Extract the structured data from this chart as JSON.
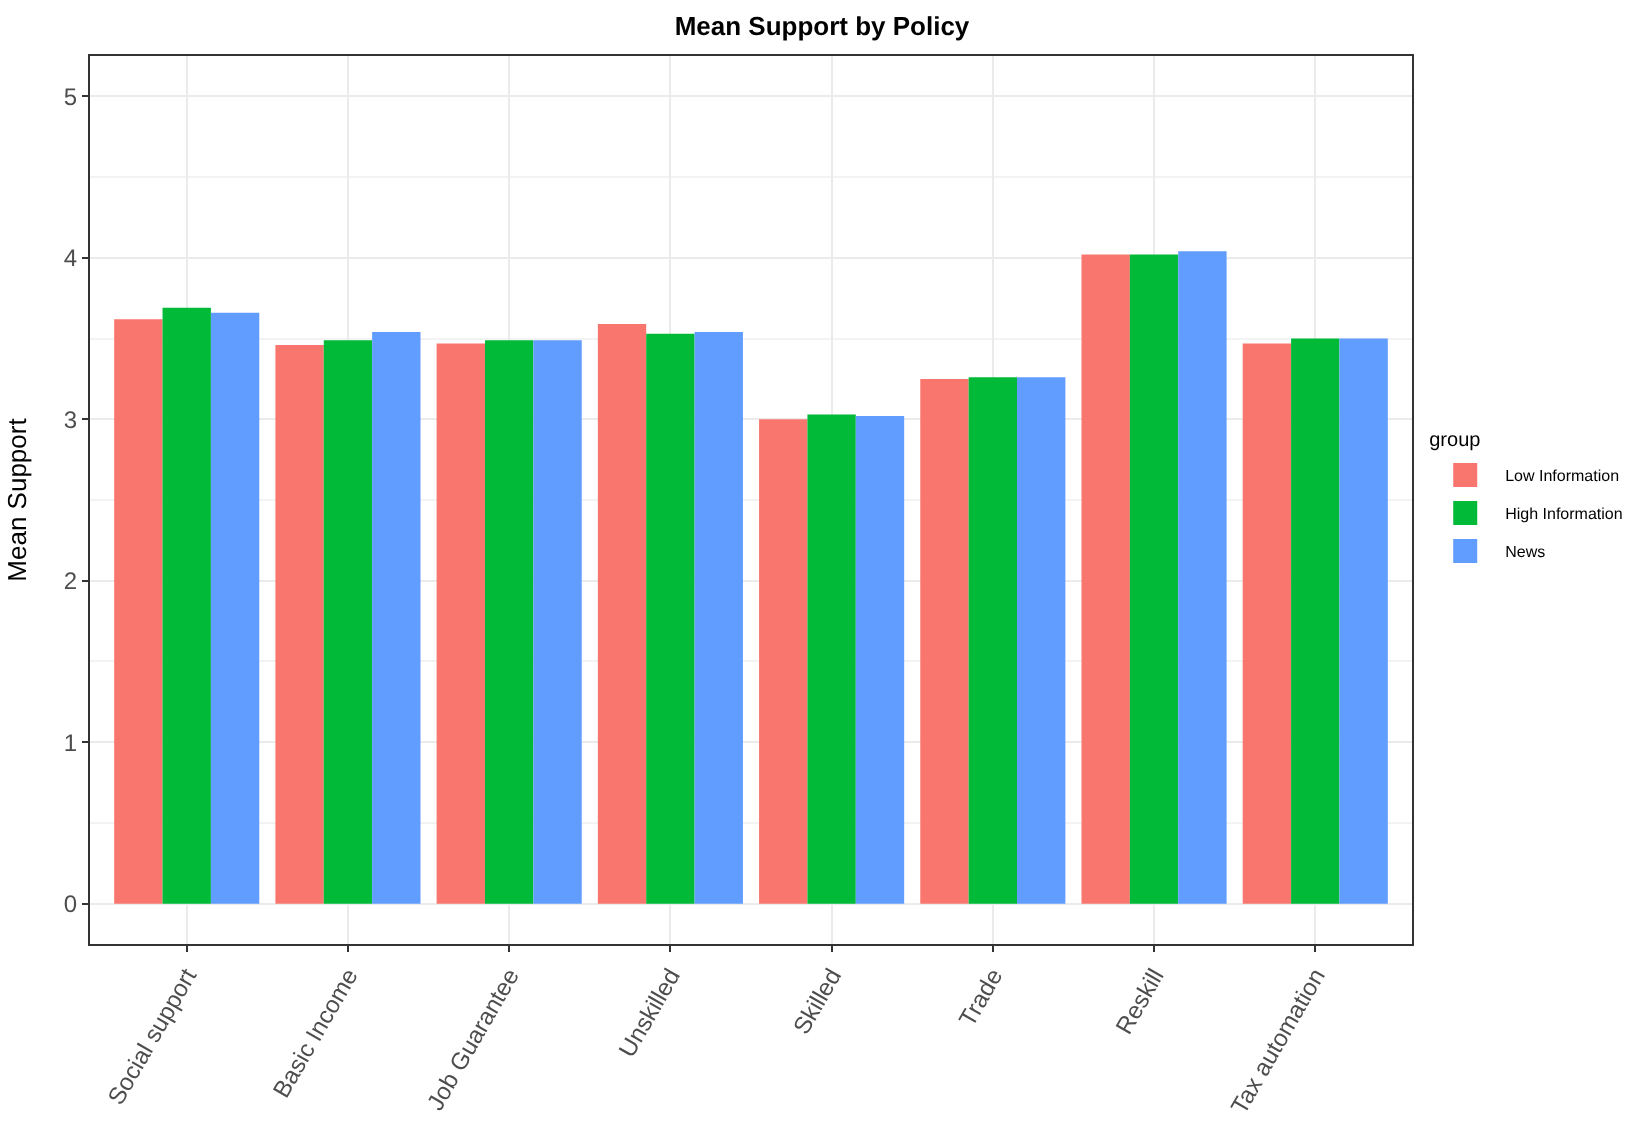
{
  "chart_data": {
    "type": "bar",
    "title": "Mean Support by Policy",
    "ylabel": "Mean Support",
    "legend_title": "group",
    "categories": [
      "Social support",
      "Basic Income",
      "Job Guarantee",
      "Unskilled",
      "Skilled",
      "Trade",
      "Reskill",
      "Tax automation"
    ],
    "series": [
      {
        "name": "Low Information",
        "color": "#f8766d",
        "values": [
          3.62,
          3.46,
          3.47,
          3.59,
          3.0,
          3.25,
          4.02,
          3.47
        ]
      },
      {
        "name": "High Information",
        "color": "#00ba38",
        "values": [
          3.69,
          3.49,
          3.49,
          3.53,
          3.03,
          3.26,
          4.02,
          3.5
        ]
      },
      {
        "name": "News",
        "color": "#619cff",
        "values": [
          3.66,
          3.54,
          3.49,
          3.54,
          3.02,
          3.26,
          4.04,
          3.5
        ]
      }
    ],
    "ylim": [
      -0.25,
      5.25
    ],
    "yticks": [
      0,
      1,
      2,
      3,
      4,
      5
    ],
    "grid": true,
    "legend": "right"
  }
}
